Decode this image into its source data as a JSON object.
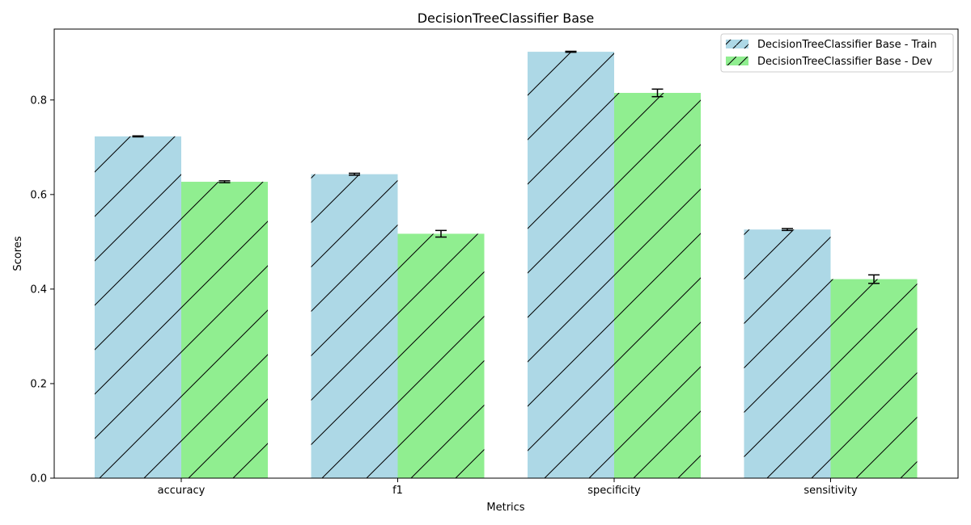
{
  "chart_data": {
    "type": "bar",
    "title": "DecisionTreeClassifier Base",
    "xlabel": "Metrics",
    "ylabel": "Scores",
    "categories": [
      "accuracy",
      "f1",
      "specificity",
      "sensitivity"
    ],
    "ylim": [
      0,
      0.95
    ],
    "yticks": [
      "0.0",
      "0.2",
      "0.4",
      "0.6",
      "0.8"
    ],
    "grid": false,
    "legend_position": "top-right",
    "hatch": "/",
    "series": [
      {
        "name": "DecisionTreeClassifier Base - Train",
        "color": "#add8e6",
        "values": [
          0.723,
          0.643,
          0.902,
          0.526
        ],
        "errors": [
          0.001,
          0.002,
          0.001,
          0.002
        ]
      },
      {
        "name": "DecisionTreeClassifier Base - Dev",
        "color": "#90ee90",
        "values": [
          0.627,
          0.517,
          0.815,
          0.421
        ],
        "errors": [
          0.002,
          0.007,
          0.008,
          0.009
        ]
      }
    ]
  }
}
